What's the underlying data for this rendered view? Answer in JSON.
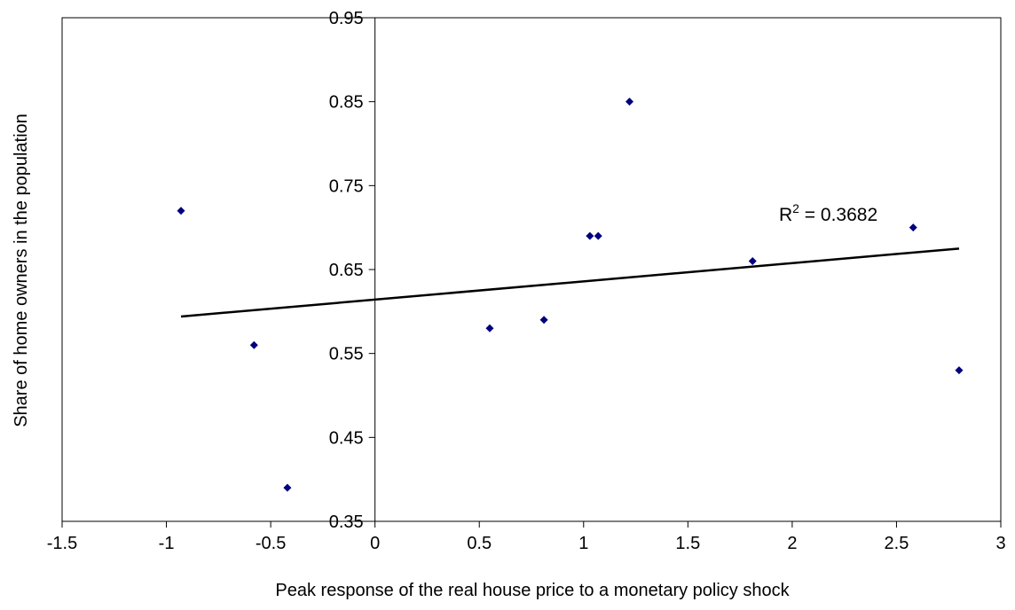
{
  "chart_data": {
    "type": "scatter",
    "title": "",
    "xlabel": "Peak response of the real house price to a monetary policy shock",
    "ylabel": "Share of home owners in the population",
    "xlim": [
      -1.5,
      3
    ],
    "ylim": [
      0.35,
      0.95
    ],
    "xticks": [
      -1.5,
      -1,
      -0.5,
      0,
      0.5,
      1,
      1.5,
      2,
      2.5,
      3
    ],
    "yticks": [
      0.35,
      0.45,
      0.55,
      0.65,
      0.75,
      0.85,
      0.95
    ],
    "xtick_labels": [
      "-1.5",
      "-1",
      "-0.5",
      "0",
      "0.5",
      "1",
      "1.5",
      "2",
      "2.5",
      "3"
    ],
    "ytick_labels": [
      "0.35",
      "0.45",
      "0.55",
      "0.65",
      "0.75",
      "0.85",
      "0.95"
    ],
    "grid": false,
    "legend": "none",
    "marker_color": "#00007f",
    "trend_color": "#000000",
    "series": [
      {
        "points": [
          {
            "x": -0.93,
            "y": 0.72
          },
          {
            "x": -0.58,
            "y": 0.56
          },
          {
            "x": -0.42,
            "y": 0.39
          },
          {
            "x": 0.55,
            "y": 0.58
          },
          {
            "x": 0.81,
            "y": 0.59
          },
          {
            "x": 1.03,
            "y": 0.69
          },
          {
            "x": 1.07,
            "y": 0.69
          },
          {
            "x": 1.22,
            "y": 0.85
          },
          {
            "x": 1.81,
            "y": 0.66
          },
          {
            "x": 2.58,
            "y": 0.7
          },
          {
            "x": 2.8,
            "y": 0.53
          }
        ]
      }
    ],
    "trendline": {
      "x_start": -0.93,
      "y_start": 0.594,
      "x_end": 2.8,
      "y_end": 0.675,
      "r2_prefix": "R",
      "r2_exp": "2",
      "r2_value": " = 0.3682"
    }
  }
}
